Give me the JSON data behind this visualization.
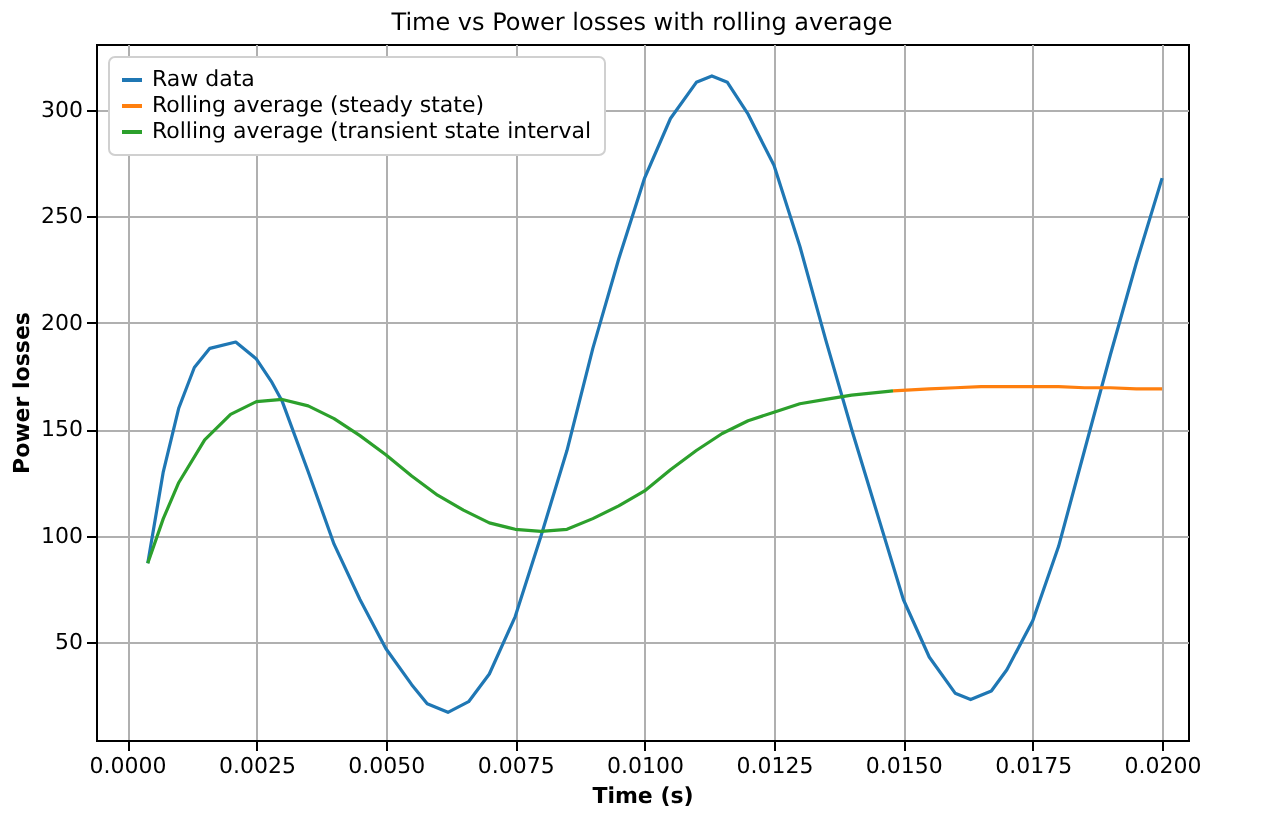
{
  "chart_data": {
    "type": "line",
    "title": "Time vs Power losses with rolling average",
    "xlabel": "Time (s)",
    "ylabel": "Power losses",
    "xlim": [
      -0.0006,
      0.0205
    ],
    "ylim": [
      4,
      331
    ],
    "xticks": [
      {
        "value": 0,
        "label": "0.0000"
      },
      {
        "value": 0.0025,
        "label": "0.0025"
      },
      {
        "value": 0.005,
        "label": "0.0050"
      },
      {
        "value": 0.0075,
        "label": "0.0075"
      },
      {
        "value": 0.01,
        "label": "0.0100"
      },
      {
        "value": 0.0125,
        "label": "0.0125"
      },
      {
        "value": 0.015,
        "label": "0.0150"
      },
      {
        "value": 0.0175,
        "label": "0.0175"
      },
      {
        "value": 0.02,
        "label": "0.0200"
      }
    ],
    "yticks": [
      50,
      100,
      150,
      200,
      250,
      300
    ],
    "grid": true,
    "legend": "top left",
    "line_style": "solid",
    "marker": "none",
    "series": [
      {
        "name": "Raw data",
        "color": "#1f77b4",
        "x": [
          0.0004,
          0.0007,
          0.001,
          0.0013,
          0.0016,
          0.0021,
          0.0025,
          0.0028,
          0.003,
          0.0035,
          0.004,
          0.0045,
          0.005,
          0.0055,
          0.0058,
          0.0062,
          0.0066,
          0.007,
          0.0075,
          0.008,
          0.0085,
          0.009,
          0.0095,
          0.01,
          0.0105,
          0.011,
          0.0113,
          0.0116,
          0.012,
          0.0125,
          0.013,
          0.0135,
          0.014,
          0.0145,
          0.015,
          0.0155,
          0.016,
          0.0163,
          0.0167,
          0.017,
          0.0175,
          0.018,
          0.0185,
          0.019,
          0.0195,
          0.02
        ],
        "values": [
          87,
          130,
          160,
          179,
          188,
          191,
          183,
          172,
          163,
          130,
          96,
          70,
          47,
          30,
          21,
          17,
          22,
          35,
          62,
          100,
          140,
          188,
          230,
          268,
          296,
          313,
          316,
          313,
          298,
          274,
          236,
          192,
          150,
          110,
          70,
          43,
          26,
          23,
          27,
          37,
          60,
          95,
          140,
          185,
          228,
          268
        ]
      },
      {
        "name": "Rolling average (steady state)",
        "color": "#ff7f0e",
        "x": [
          0.0148,
          0.0155,
          0.016,
          0.0165,
          0.017,
          0.0175,
          0.018,
          0.0185,
          0.019,
          0.0195,
          0.02
        ],
        "values": [
          168,
          169,
          169.5,
          170,
          170,
          170,
          170,
          169.5,
          169.5,
          169,
          169
        ]
      },
      {
        "name": "Rolling average (transient state interval",
        "color": "#2ca02c",
        "x": [
          0.0004,
          0.0007,
          0.001,
          0.0015,
          0.002,
          0.0025,
          0.003,
          0.0035,
          0.004,
          0.0045,
          0.005,
          0.0055,
          0.006,
          0.0065,
          0.007,
          0.0075,
          0.008,
          0.0085,
          0.009,
          0.0095,
          0.01,
          0.0105,
          0.011,
          0.0115,
          0.012,
          0.0125,
          0.013,
          0.0135,
          0.014,
          0.0148
        ],
        "values": [
          87,
          108,
          125,
          145,
          157,
          163,
          164,
          161,
          155,
          147,
          138,
          128,
          119,
          112,
          106,
          103,
          102,
          103,
          108,
          114,
          121,
          131,
          140,
          148,
          154,
          158,
          162,
          164,
          166,
          168
        ]
      }
    ]
  }
}
